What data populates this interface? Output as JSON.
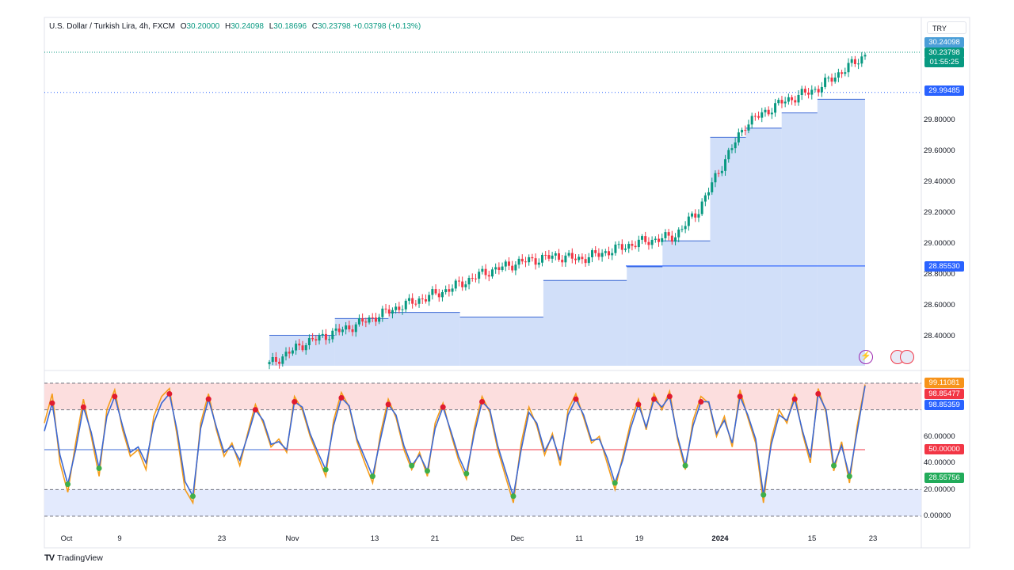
{
  "header": {
    "title": "U.S. Dollar / Turkish Lira, 4h, FXCM",
    "open_label": "O",
    "open": "30.20000",
    "high_label": "H",
    "high": "30.24098",
    "low_label": "L",
    "low": "30.18696",
    "close_label": "C",
    "close": "30.23798",
    "change": "+0.03798 (+0.13%)"
  },
  "currency_badge": "TRY",
  "price_axis": {
    "ticks": [
      "29.80000",
      "29.60000",
      "29.40000",
      "29.20000",
      "29.00000",
      "28.80000",
      "28.60000",
      "28.40000"
    ],
    "badges": {
      "high": "30.24098",
      "last_price": "30.23798",
      "countdown": "01:55:25",
      "upper_level": "29.99485",
      "lower_level": "28.85530"
    }
  },
  "osc_axis": {
    "ticks": [
      "60.00000",
      "40.00000",
      "20.00000",
      "0.00000"
    ],
    "badges": {
      "orange": "99.11081",
      "red": "98.85477",
      "blue": "98.85359",
      "mid": "50.00000",
      "green": "28.55756"
    }
  },
  "time_axis": [
    "Oct",
    "9",
    "23",
    "Nov",
    "13",
    "21",
    "Dec",
    "11",
    "19",
    "2024",
    "15",
    "23"
  ],
  "brand": "TradingView",
  "colors": {
    "up": "#089981",
    "down": "#f23645",
    "fill": "#b3c9f5",
    "band_top": "#fcdede",
    "band_bottom": "#e3eafd",
    "stoch_blue": "#3b68d4",
    "stoch_orange": "#f59c1a"
  },
  "chart_data": [
    {
      "type": "candlestick",
      "title": "U.S. Dollar / Turkish Lira, 4h, FXCM",
      "ylim": [
        28.2,
        30.3
      ],
      "x_labels": [
        "Oct",
        "9",
        "23",
        "Nov",
        "13",
        "21",
        "Dec",
        "11",
        "19",
        "2024",
        "15",
        "23"
      ],
      "trend": {
        "x": [
          0.0,
          0.06,
          0.14,
          0.22,
          0.3,
          0.36,
          0.42,
          0.48,
          0.52,
          0.56,
          0.62,
          0.68,
          0.72,
          0.76,
          0.8,
          0.86,
          0.92,
          1.0
        ],
        "y": [
          28.21,
          28.35,
          28.46,
          28.59,
          28.7,
          28.81,
          28.88,
          28.92,
          28.9,
          28.94,
          29.01,
          29.05,
          29.22,
          29.52,
          29.79,
          29.93,
          30.02,
          30.24
        ]
      },
      "step_levels": [
        {
          "start": 0.0,
          "end": 0.11,
          "level": 28.4
        },
        {
          "start": 0.11,
          "end": 0.2,
          "level": 28.51
        },
        {
          "start": 0.2,
          "end": 0.32,
          "level": 28.55
        },
        {
          "start": 0.32,
          "end": 0.46,
          "level": 28.52
        },
        {
          "start": 0.46,
          "end": 0.6,
          "level": 28.76
        },
        {
          "start": 0.6,
          "end": 0.66,
          "level": 28.85
        },
        {
          "start": 0.66,
          "end": 0.74,
          "level": 29.02
        },
        {
          "start": 0.74,
          "end": 0.8,
          "level": 29.7
        },
        {
          "start": 0.8,
          "end": 0.86,
          "level": 29.76
        },
        {
          "start": 0.86,
          "end": 0.92,
          "level": 29.86
        },
        {
          "start": 0.92,
          "end": 1.0,
          "level": 29.95
        }
      ],
      "levels": {
        "upper": 29.99485,
        "lower": 28.8553
      }
    },
    {
      "type": "line",
      "ylim": [
        0,
        100
      ],
      "bands": {
        "overbought": [
          80,
          100
        ],
        "oversold": [
          0,
          20
        ],
        "mid": 50
      },
      "series": [
        {
          "values": [
            70,
            92,
            40,
            18,
            55,
            88,
            60,
            30,
            80,
            95,
            65,
            45,
            50,
            35,
            75,
            90,
            96,
            60,
            20,
            10,
            70,
            92,
            65,
            45,
            55,
            38,
            62,
            84,
            70,
            52,
            58,
            48,
            90,
            80,
            60,
            45,
            30,
            72,
            93,
            82,
            56,
            40,
            25,
            62,
            88,
            74,
            50,
            35,
            48,
            30,
            70,
            85,
            62,
            42,
            28,
            66,
            90,
            78,
            50,
            30,
            10,
            55,
            82,
            68,
            46,
            62,
            38,
            80,
            92,
            74,
            55,
            60,
            40,
            20,
            45,
            70,
            88,
            65,
            92,
            80,
            94,
            58,
            35,
            72,
            90,
            85,
            60,
            75,
            52,
            95,
            74,
            55,
            10,
            58,
            80,
            70,
            92,
            62,
            40,
            96,
            78,
            34,
            56,
            25,
            68,
            99
          ]
        },
        {
          "values": [
            64,
            85,
            46,
            24,
            50,
            82,
            63,
            36,
            75,
            90,
            68,
            48,
            52,
            40,
            70,
            85,
            92,
            64,
            26,
            15,
            66,
            88,
            67,
            48,
            53,
            42,
            60,
            80,
            72,
            54,
            56,
            50,
            86,
            82,
            62,
            48,
            35,
            68,
            89,
            83,
            58,
            44,
            30,
            58,
            84,
            76,
            53,
            38,
            46,
            34,
            66,
            82,
            64,
            45,
            32,
            62,
            86,
            80,
            53,
            34,
            15,
            50,
            78,
            70,
            49,
            60,
            42,
            76,
            88,
            76,
            57,
            58,
            44,
            25,
            42,
            66,
            84,
            67,
            88,
            82,
            90,
            60,
            38,
            68,
            86,
            86,
            62,
            72,
            55,
            90,
            76,
            58,
            16,
            54,
            76,
            72,
            88,
            64,
            44,
            92,
            80,
            38,
            53,
            30,
            64,
            98
          ]
        }
      ]
    }
  ]
}
